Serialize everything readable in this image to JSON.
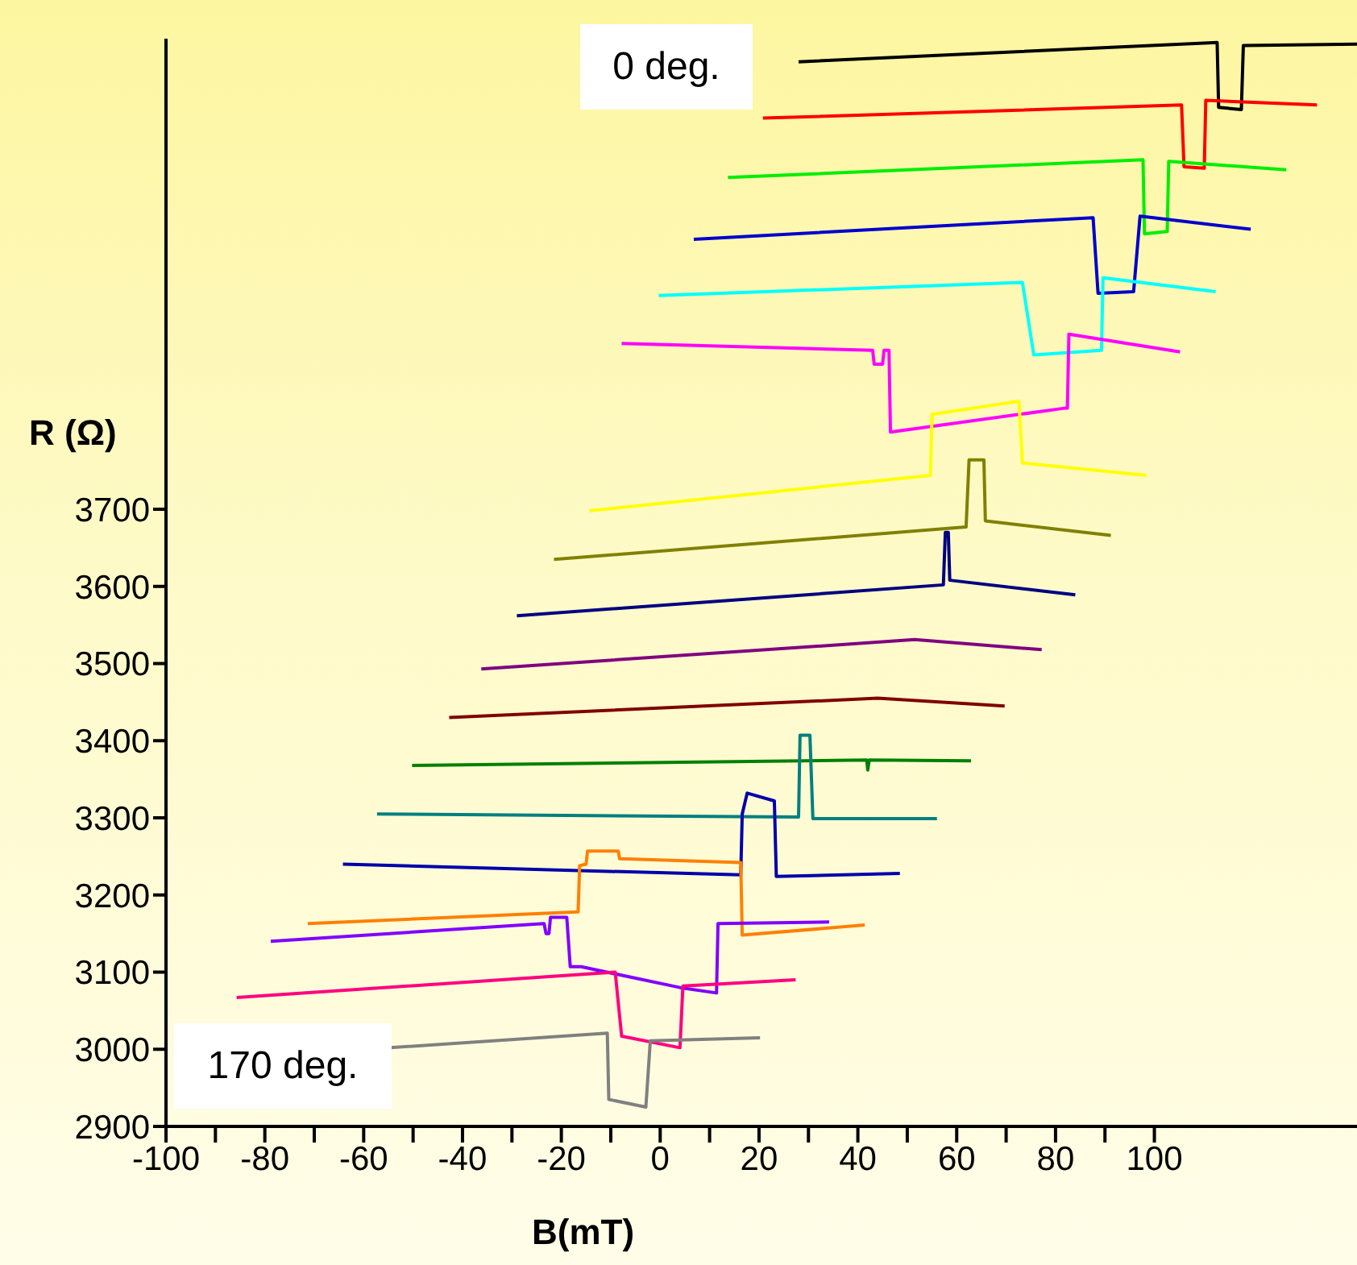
{
  "chart_data": {
    "type": "line",
    "xlabel": "B(mT)",
    "ylabel": "R (Ω)",
    "annotations": [
      "0 deg.",
      "170 deg."
    ],
    "xlim": [
      -100,
      141
    ],
    "ylim": [
      2900,
      4310
    ],
    "xticks": [
      -100,
      {
        "value": -90,
        "label": null
      },
      -80,
      {
        "value": -70,
        "label": null
      },
      -60,
      {
        "value": -50,
        "label": null
      },
      -40,
      {
        "value": -30,
        "label": null
      },
      -20,
      {
        "value": -10,
        "label": null
      },
      0,
      {
        "value": 10,
        "label": null
      },
      20,
      {
        "value": 30,
        "label": null
      },
      40,
      {
        "value": 50,
        "label": null
      },
      60,
      {
        "value": 70,
        "label": null
      },
      80,
      {
        "value": 90,
        "label": null
      },
      100
    ],
    "yticks": [
      2900,
      3000,
      3100,
      3200,
      3300,
      3400,
      3500,
      3600,
      3700
    ],
    "marker": "none",
    "line_style": "solid",
    "series": [
      {
        "color": "#000000",
        "x": [
          28.0,
          112.7,
          113.0,
          117.6,
          118.0,
          141.0
        ],
        "values": [
          4280,
          4305,
          4221,
          4218,
          4301,
          4303
        ]
      },
      {
        "color": "#ff0000",
        "x": [
          20.8,
          105.5,
          106.0,
          110.1,
          110.4,
          132.9
        ],
        "values": [
          4207,
          4224,
          4144,
          4142,
          4230,
          4224
        ]
      },
      {
        "color": "#00ee00",
        "x": [
          13.7,
          97.7,
          98.0,
          102.6,
          102.9,
          126.7
        ],
        "values": [
          4130,
          4153,
          4057,
          4060,
          4151,
          4140
        ]
      },
      {
        "color": "#0000cc",
        "x": [
          6.8,
          87.6,
          88.6,
          95.8,
          97.1,
          119.5
        ],
        "values": [
          4050,
          4078,
          3980,
          3982,
          4080,
          4063
        ]
      },
      {
        "color": "#00ffff",
        "x": [
          -0.3,
          73.3,
          75.6,
          89.3,
          89.6,
          112.4
        ],
        "values": [
          3977,
          3994,
          3900,
          3906,
          4000,
          3982
        ]
      },
      {
        "color": "#ff00ff",
        "x": [
          -7.8,
          43.0,
          43.3,
          45.0,
          45.3,
          46.3,
          46.6,
          81.8,
          82.4,
          82.7,
          105.2
        ],
        "values": [
          3915,
          3906,
          3888,
          3888,
          3906,
          3906,
          3800,
          3831,
          3831,
          3927,
          3904
        ]
      },
      {
        "color": "#ffff00",
        "x": [
          -14.3,
          54.7,
          55.0,
          72.6,
          73.3,
          98.4
        ],
        "values": [
          3698,
          3744,
          3823,
          3840,
          3760,
          3744
        ]
      },
      {
        "color": "#808000",
        "x": [
          -21.5,
          61.9,
          62.5,
          65.5,
          65.8,
          91.2
        ],
        "values": [
          3635,
          3677,
          3764,
          3764,
          3685,
          3666
        ]
      },
      {
        "color": "#000080",
        "x": [
          -29.0,
          57.3,
          57.7,
          58.3,
          58.6,
          84.0
        ],
        "values": [
          3562,
          3602,
          3670,
          3670,
          3608,
          3589
        ]
      },
      {
        "color": "#800080",
        "x": [
          -36.2,
          51.5,
          77.2
        ],
        "values": [
          3493,
          3531,
          3518
        ]
      },
      {
        "color": "#800000",
        "x": [
          -42.7,
          44.0,
          69.7
        ],
        "values": [
          3430,
          3455,
          3445
        ]
      },
      {
        "color": "#008000",
        "x": [
          -50.2,
          41.8,
          42.0,
          42.3,
          62.9
        ],
        "values": [
          3368,
          3375,
          3362,
          3375,
          3374
        ]
      },
      {
        "color": "#008080",
        "x": [
          -57.3,
          28.0,
          28.3,
          30.3,
          30.9,
          56.0
        ],
        "values": [
          3305,
          3301,
          3407,
          3407,
          3299,
          3299
        ]
      },
      {
        "color": "#0000aa",
        "x": [
          -64.2,
          16.3,
          16.6,
          17.6,
          23.1,
          23.5,
          48.5
        ],
        "values": [
          3240,
          3226,
          3305,
          3332,
          3322,
          3224,
          3228
        ]
      },
      {
        "color": "#ff8000",
        "x": [
          -71.3,
          -16.6,
          -16.3,
          -15.0,
          -14.7,
          -8.5,
          -8.2,
          16.3,
          16.6,
          41.4
        ],
        "values": [
          3163,
          3178,
          3238,
          3240,
          3257,
          3257,
          3247,
          3242,
          3148,
          3161
        ]
      },
      {
        "color": "#8000ff",
        "x": [
          -78.8,
          -23.5,
          -23.1,
          -22.5,
          -22.2,
          -18.9,
          -18.2,
          -16.0,
          4.0,
          11.4,
          11.7,
          34.2
        ],
        "values": [
          3140,
          3163,
          3150,
          3150,
          3171,
          3171,
          3107,
          3107,
          3080,
          3073,
          3163,
          3165
        ]
      },
      {
        "color": "#ff0080",
        "x": [
          -85.7,
          -9.1,
          -7.8,
          4.0,
          4.6,
          27.4
        ],
        "values": [
          3067,
          3100,
          3017,
          3002,
          3082,
          3090
        ]
      },
      {
        "color": "#808080",
        "x": [
          -54.7,
          -10.7,
          -10.4,
          -2.9,
          -2.0,
          20.2
        ],
        "values": [
          3002,
          3021,
          2935,
          2925,
          3011,
          3015
        ]
      }
    ]
  }
}
